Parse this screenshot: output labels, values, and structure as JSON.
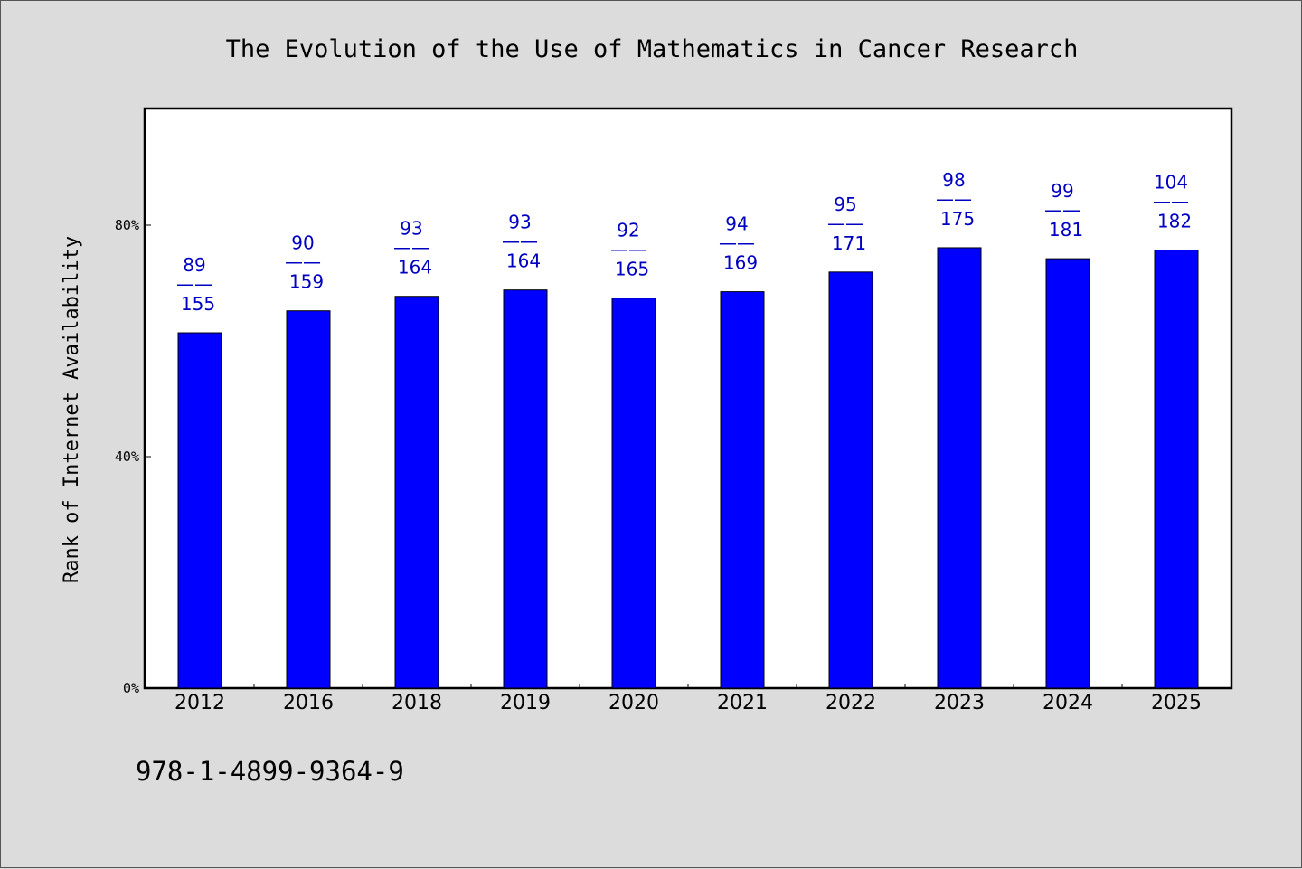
{
  "chart_data": {
    "type": "bar",
    "title": "The Evolution of the Use of Mathematics in Cancer Research",
    "ylabel": "Rank of Internet Availability",
    "xlabel": "",
    "ylim": [
      0,
      100
    ],
    "yticks": [
      0,
      40,
      80
    ],
    "ytick_suffix": "%",
    "categories": [
      "2012",
      "2016",
      "2018",
      "2019",
      "2020",
      "2021",
      "2022",
      "2023",
      "2024",
      "2025"
    ],
    "values": [
      61.4,
      65.2,
      67.7,
      68.8,
      67.4,
      68.5,
      71.9,
      76.1,
      74.2,
      75.7
    ],
    "labels": [
      {
        "top": "89",
        "sep": "——",
        "bottom": "155"
      },
      {
        "top": "90",
        "sep": "——",
        "bottom": "159"
      },
      {
        "top": "93",
        "sep": "——",
        "bottom": "164"
      },
      {
        "top": "93",
        "sep": "——",
        "bottom": "164"
      },
      {
        "top": "92",
        "sep": "——",
        "bottom": "165"
      },
      {
        "top": "94",
        "sep": "——",
        "bottom": "169"
      },
      {
        "top": "95",
        "sep": "——",
        "bottom": "171"
      },
      {
        "top": "98",
        "sep": "——",
        "bottom": "175"
      },
      {
        "top": "99",
        "sep": "——",
        "bottom": "181"
      },
      {
        "top": "104",
        "sep": "——",
        "bottom": "182"
      }
    ],
    "bar_color": "#0000ff",
    "label_color": "#0000c0",
    "grid": false,
    "legend": "none"
  },
  "footer": {
    "isbn": "978-1-4899-9364-9"
  }
}
